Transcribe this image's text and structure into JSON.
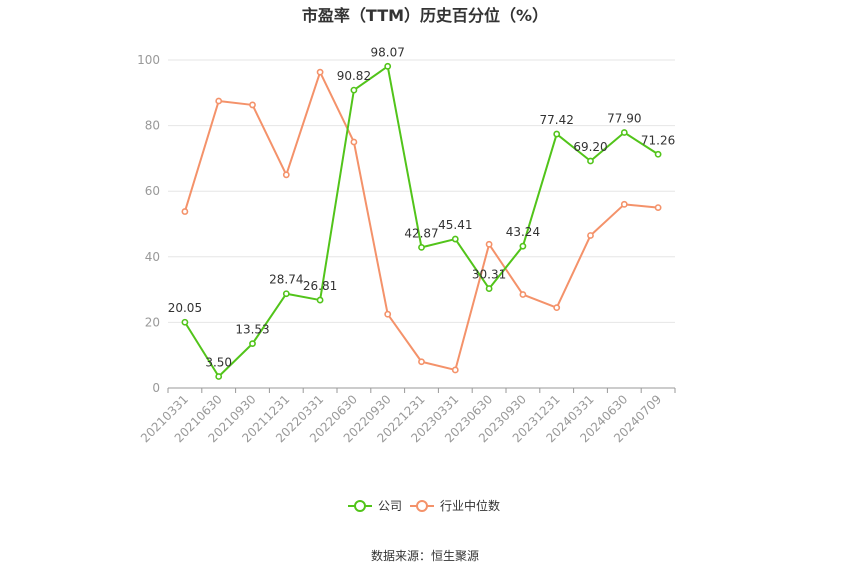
{
  "chart_data": {
    "type": "line",
    "title": "市盈率（TTM）历史百分位（%）",
    "categories": [
      "20210331",
      "20210630",
      "20210930",
      "20211231",
      "20220331",
      "20220630",
      "20220930",
      "20221231",
      "20230331",
      "20230630",
      "20230930",
      "20231231",
      "20240331",
      "20240630",
      "20240709"
    ],
    "ylim": [
      0,
      100
    ],
    "yticks": [
      0,
      20,
      40,
      60,
      80,
      100
    ],
    "grid": true,
    "legend_position": "bottom",
    "series": [
      {
        "name": "公司",
        "color": "#52c41a",
        "values": [
          20.05,
          3.5,
          13.53,
          28.74,
          26.81,
          90.82,
          98.07,
          42.87,
          45.41,
          30.31,
          43.24,
          77.42,
          69.2,
          77.9,
          71.26
        ],
        "labels": [
          "20.05",
          "3.50",
          "13.53",
          "28.74",
          "26.81",
          "90.82",
          "98.07",
          "42.87",
          "45.41",
          "30.31",
          "43.24",
          "77.42",
          "69.20",
          "77.90",
          "71.26"
        ]
      },
      {
        "name": "行业中位数",
        "color": "#f4926a",
        "values": [
          53.8,
          87.5,
          86.3,
          65.0,
          96.3,
          75.0,
          22.5,
          8.0,
          5.5,
          43.8,
          28.5,
          24.5,
          46.5,
          56.0,
          55.0
        ]
      }
    ]
  },
  "source_text": "数据来源：恒生聚源"
}
